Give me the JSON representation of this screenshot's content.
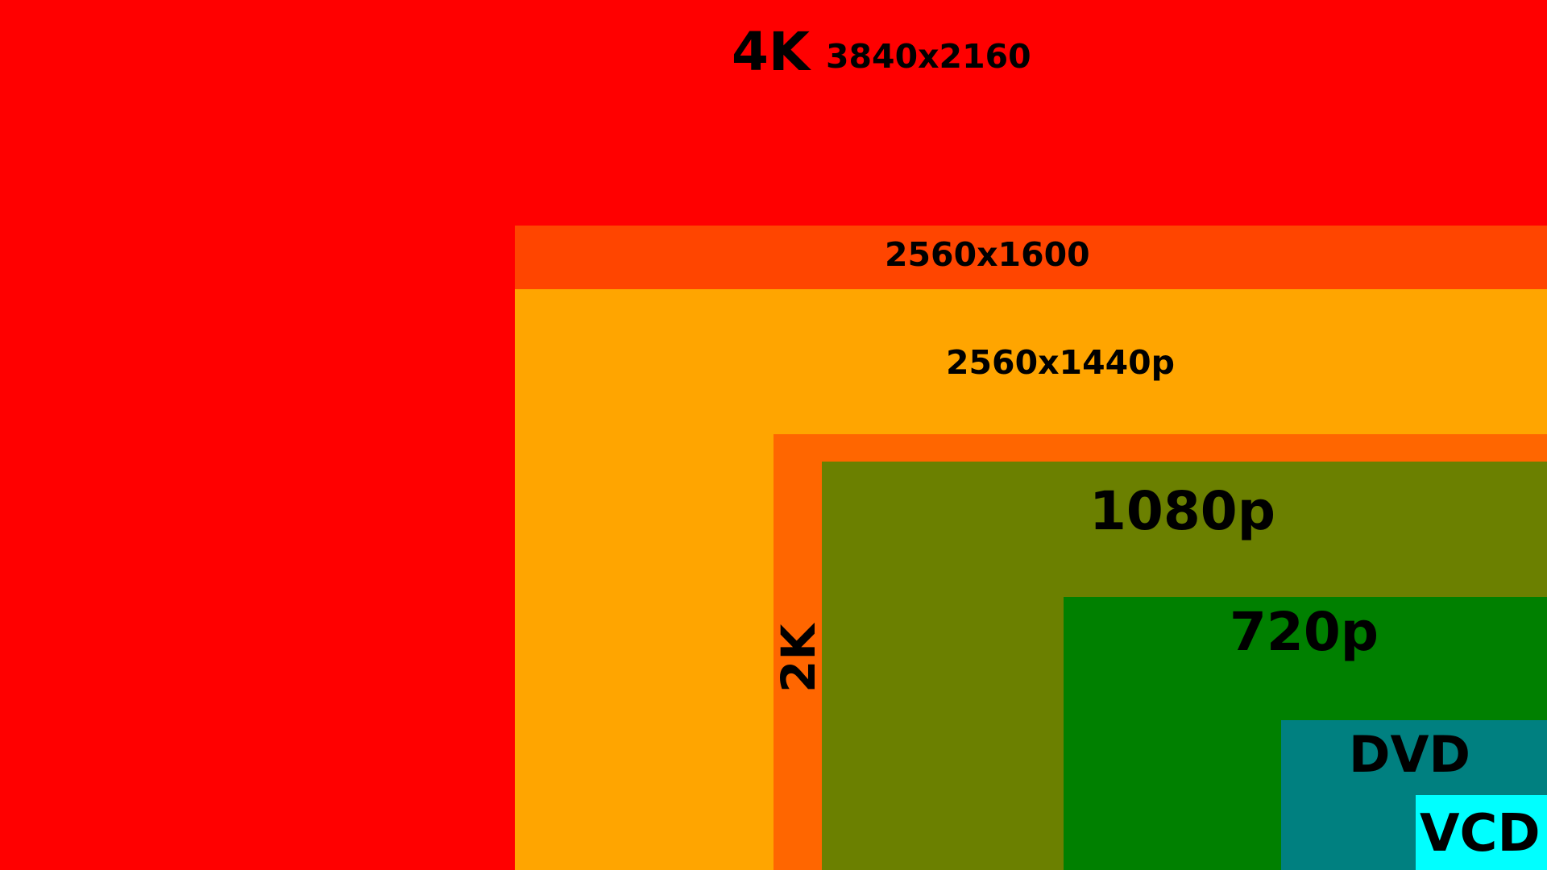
{
  "regions": {
    "uhd_4k": {
      "label": "4K",
      "resolution": "3840x2160",
      "color": "#FF0000"
    },
    "wqxga": {
      "label": "2560x1600",
      "color": "#FF4500"
    },
    "qhd": {
      "label": "2560x1440p",
      "color": "#FFA500"
    },
    "dci_2k": {
      "label": "2K",
      "color": "#FF6600"
    },
    "fhd": {
      "label": "1080p",
      "color": "#6B8000"
    },
    "hd": {
      "label": "720p",
      "color": "#008000"
    },
    "dvd": {
      "label": "DVD",
      "color": "#008080"
    },
    "vcd": {
      "label": "VCD",
      "color": "#00FFFF"
    }
  }
}
